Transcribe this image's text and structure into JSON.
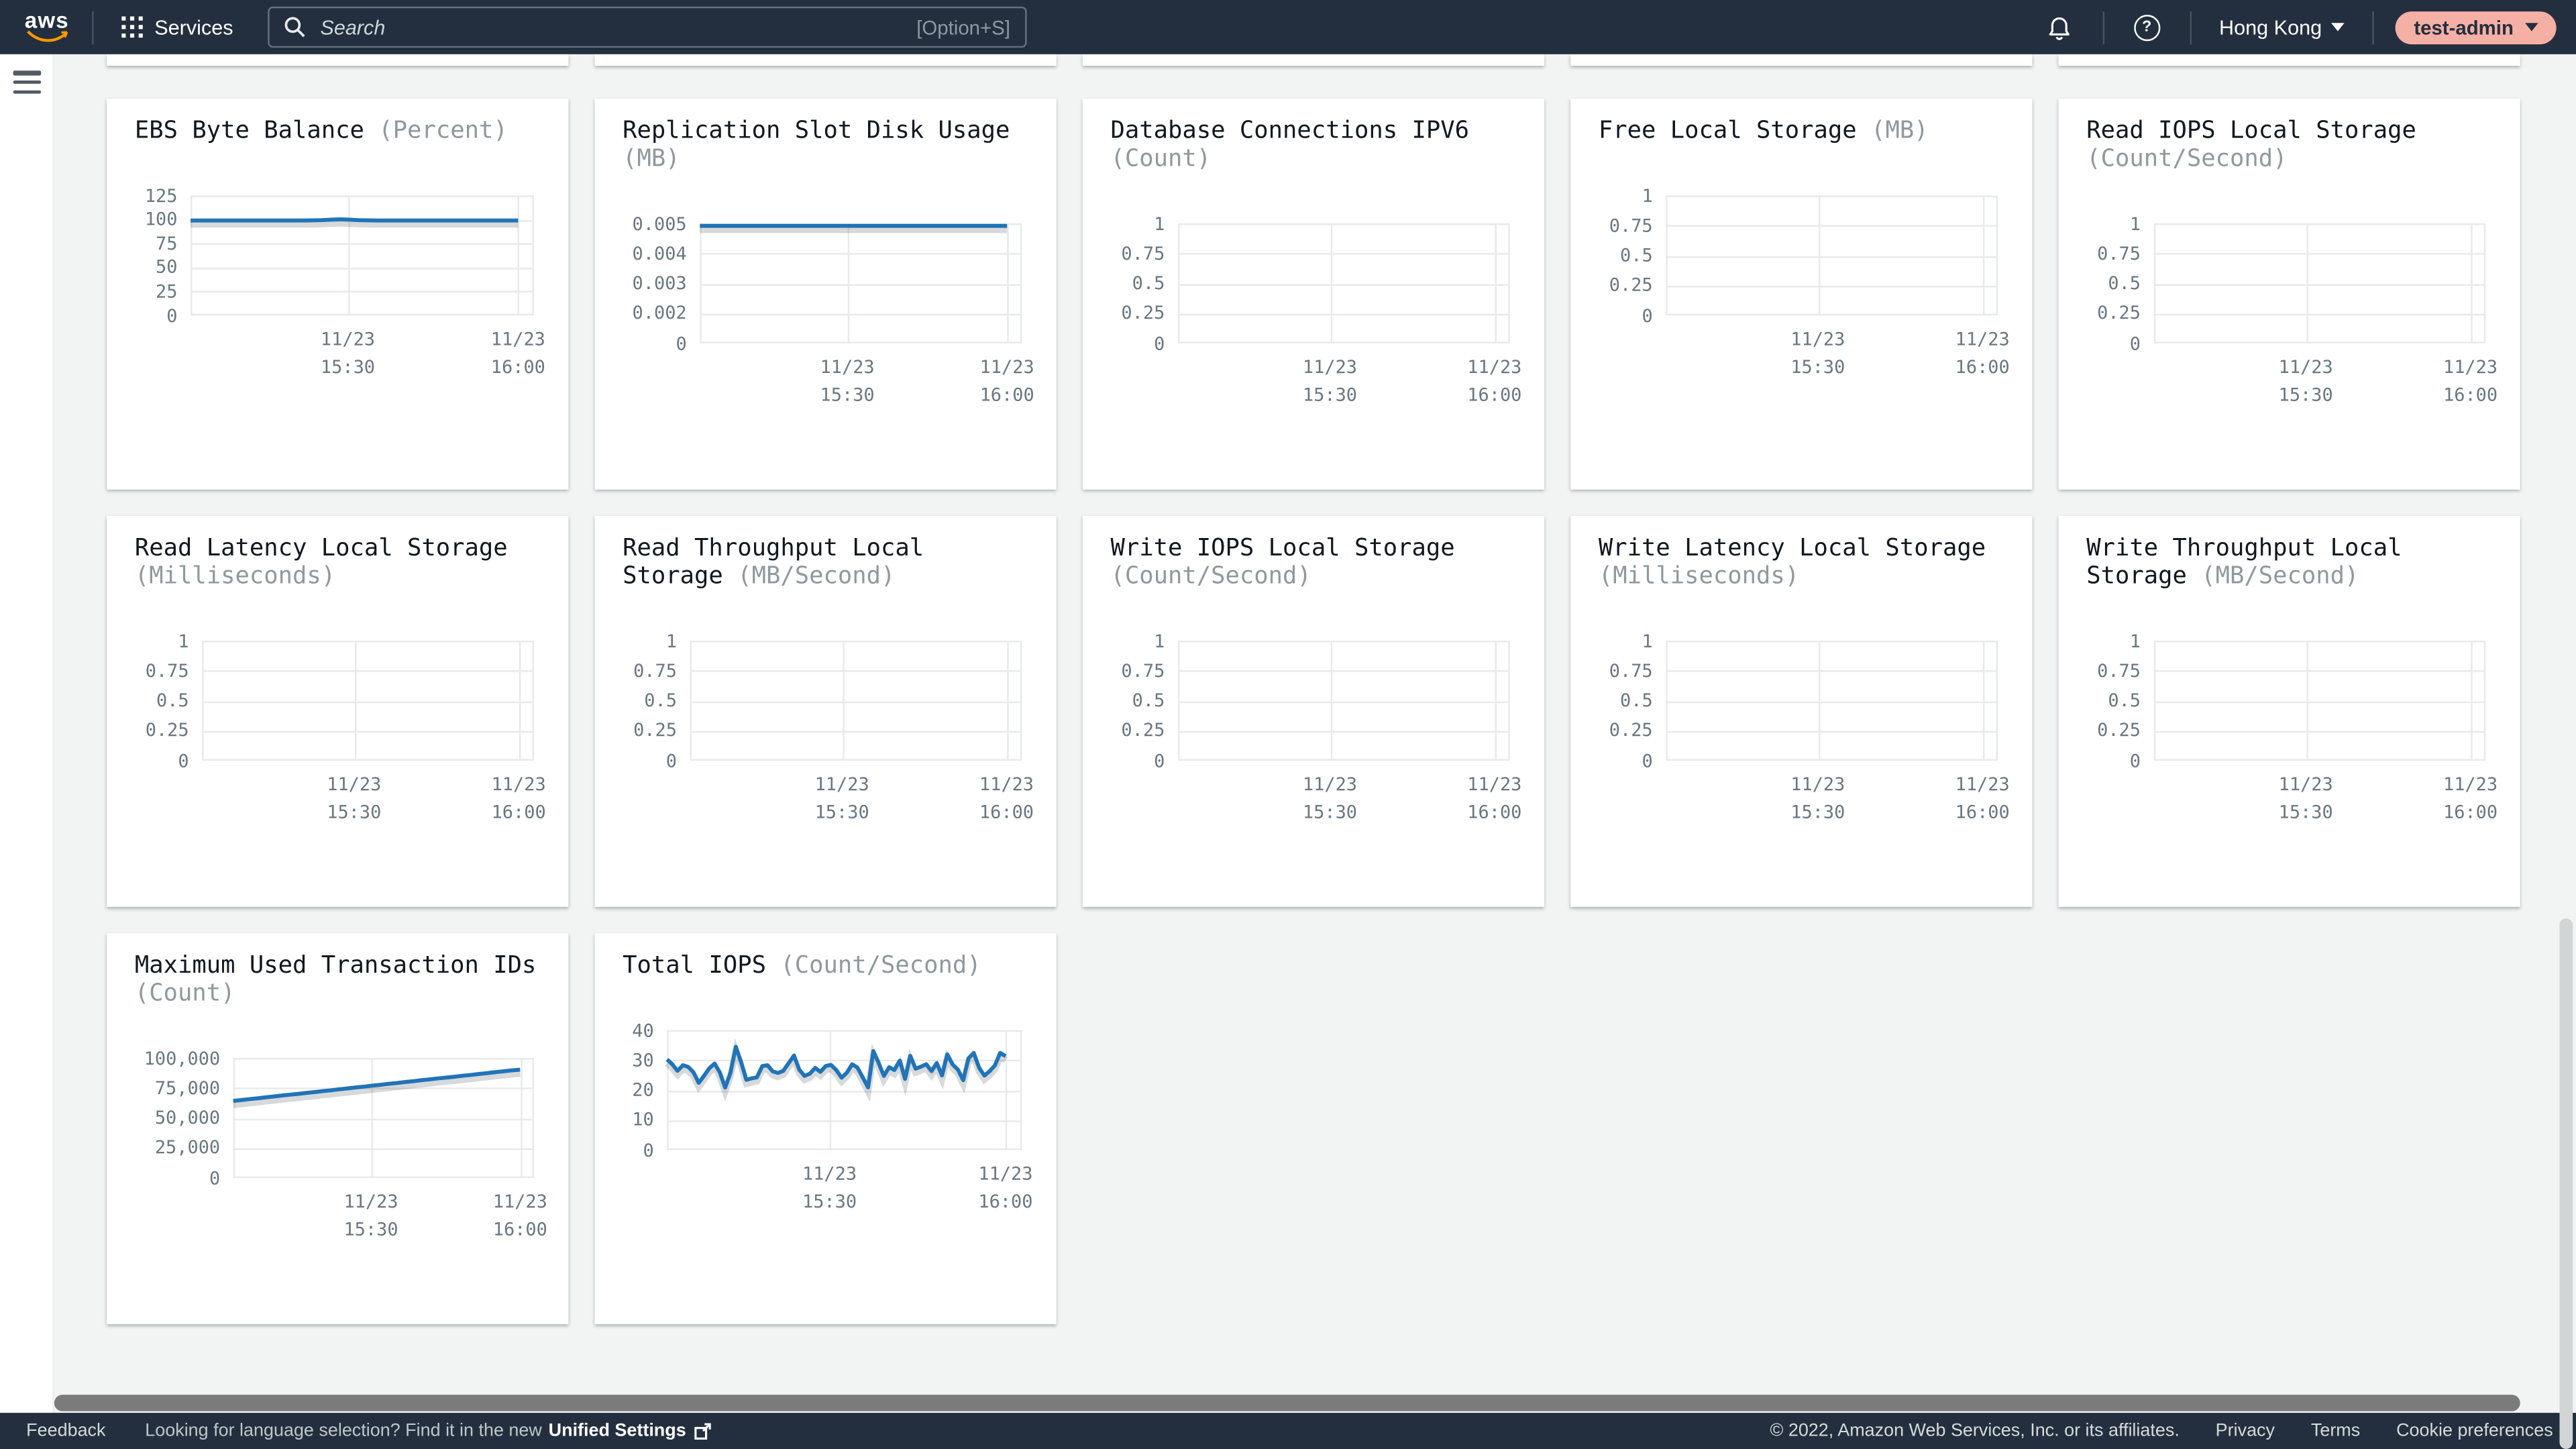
{
  "header": {
    "logo_text": "aws",
    "services_label": "Services",
    "search_placeholder": "Search",
    "search_shortcut": "[Option+S]",
    "region_label": "Hong Kong",
    "user_label": "test-admin"
  },
  "footer": {
    "feedback": "Feedback",
    "language_hint": "Looking for language selection? Find it in the new",
    "unified_settings": "Unified Settings",
    "copyright": "© 2022, Amazon Web Services, Inc. or its affiliates.",
    "privacy": "Privacy",
    "terms": "Terms",
    "cookie_preferences": "Cookie preferences"
  },
  "colors": {
    "header_bg": "#232f3e",
    "page_bg": "#f2f3f3",
    "card_bg": "#ffffff",
    "line_blue": "#2074b8",
    "grid_line": "#e7eaea",
    "aws_orange": "#ff9900",
    "user_pill_bg": "#f5b0a6",
    "title_text": "#101820",
    "unit_text": "#8e999e",
    "axis_text": "#697781"
  },
  "chart_data": [
    {
      "type": "line",
      "title": "EBS Byte Balance",
      "unit": "(Percent)",
      "ylim": [
        0,
        125
      ],
      "yticks": [
        "125",
        "100",
        "75",
        "50",
        "25",
        "0"
      ],
      "xticks": [
        [
          "11/23",
          "15:30"
        ],
        [
          "11/23",
          "16:00"
        ]
      ],
      "values": [
        99,
        99,
        99,
        99,
        99,
        99,
        99,
        99,
        99,
        99,
        99,
        99,
        99,
        99.1,
        99.4,
        99.9,
        100.2,
        99.8,
        99.4,
        99.1,
        99,
        99,
        99,
        99,
        99,
        99,
        99,
        99,
        99,
        99,
        99,
        99,
        99,
        99,
        99,
        99
      ]
    },
    {
      "type": "line",
      "title": "Replication Slot Disk Usage",
      "unit": "(MB)",
      "ylim": [
        0,
        0.005
      ],
      "yticks": [
        "0.005",
        "0.004",
        "0.003",
        "0.002",
        "0"
      ],
      "xticks": [
        [
          "11/23",
          "15:30"
        ],
        [
          "11/23",
          "16:00"
        ]
      ],
      "values": [
        0.0049,
        0.0049,
        0.0049,
        0.0049,
        0.0049,
        0.0049,
        0.0049,
        0.0049,
        0.0049,
        0.0049,
        0.0049,
        0.0049,
        0.0049,
        0.0049,
        0.0049,
        0.0049,
        0.0049,
        0.0049,
        0.0049,
        0.0049,
        0.0049,
        0.0049,
        0.0049,
        0.0049,
        0.0049,
        0.0049,
        0.0049,
        0.0049,
        0.0049,
        0.0049,
        0.0049,
        0.0049,
        0.0049,
        0.0049,
        0.0049,
        0.0049
      ]
    },
    {
      "type": "line",
      "title": "Database Connections IPV6",
      "unit": "(Count)",
      "ylim": [
        0,
        1
      ],
      "yticks": [
        "1",
        "0.75",
        "0.5",
        "0.25",
        "0"
      ],
      "xticks": [
        [
          "11/23",
          "15:30"
        ],
        [
          "11/23",
          "16:00"
        ]
      ],
      "values": []
    },
    {
      "type": "line",
      "title": "Free Local Storage",
      "unit": "(MB)",
      "ylim": [
        0,
        1
      ],
      "yticks": [
        "1",
        "0.75",
        "0.5",
        "0.25",
        "0"
      ],
      "xticks": [
        [
          "11/23",
          "15:30"
        ],
        [
          "11/23",
          "16:00"
        ]
      ],
      "values": []
    },
    {
      "type": "line",
      "title": "Read IOPS Local Storage",
      "unit": "(Count/Second)",
      "ylim": [
        0,
        1
      ],
      "yticks": [
        "1",
        "0.75",
        "0.5",
        "0.25",
        "0"
      ],
      "xticks": [
        [
          "11/23",
          "15:30"
        ],
        [
          "11/23",
          "16:00"
        ]
      ],
      "values": []
    },
    {
      "type": "line",
      "title": "Read Latency Local Storage",
      "unit": "(Milliseconds)",
      "ylim": [
        0,
        1
      ],
      "yticks": [
        "1",
        "0.75",
        "0.5",
        "0.25",
        "0"
      ],
      "xticks": [
        [
          "11/23",
          "15:30"
        ],
        [
          "11/23",
          "16:00"
        ]
      ],
      "values": []
    },
    {
      "type": "line",
      "title": "Read Throughput Local Storage",
      "unit": "(MB/Second)",
      "ylim": [
        0,
        1
      ],
      "yticks": [
        "1",
        "0.75",
        "0.5",
        "0.25",
        "0"
      ],
      "xticks": [
        [
          "11/23",
          "15:30"
        ],
        [
          "11/23",
          "16:00"
        ]
      ],
      "values": []
    },
    {
      "type": "line",
      "title": "Write IOPS Local Storage",
      "unit": "(Count/Second)",
      "ylim": [
        0,
        1
      ],
      "yticks": [
        "1",
        "0.75",
        "0.5",
        "0.25",
        "0"
      ],
      "xticks": [
        [
          "11/23",
          "15:30"
        ],
        [
          "11/23",
          "16:00"
        ]
      ],
      "values": []
    },
    {
      "type": "line",
      "title": "Write Latency Local Storage",
      "unit": "(Milliseconds)",
      "ylim": [
        0,
        1
      ],
      "yticks": [
        "1",
        "0.75",
        "0.5",
        "0.25",
        "0"
      ],
      "xticks": [
        [
          "11/23",
          "15:30"
        ],
        [
          "11/23",
          "16:00"
        ]
      ],
      "values": []
    },
    {
      "type": "line",
      "title": "Write Throughput Local Storage",
      "unit": "(MB/Second)",
      "ylim": [
        0,
        1
      ],
      "yticks": [
        "1",
        "0.75",
        "0.5",
        "0.25",
        "0"
      ],
      "xticks": [
        [
          "11/23",
          "15:30"
        ],
        [
          "11/23",
          "16:00"
        ]
      ],
      "values": []
    },
    {
      "type": "line",
      "title": "Maximum Used Transaction IDs",
      "unit": "(Count)",
      "ylim": [
        0,
        100000
      ],
      "yticks": [
        "100,000",
        "75,000",
        "50,000",
        "25,000",
        "0"
      ],
      "xticks": [
        [
          "11/23",
          "15:30"
        ],
        [
          "11/23",
          "16:00"
        ]
      ],
      "values": [
        64200,
        64950,
        65700,
        66450,
        67200,
        67950,
        68700,
        69450,
        70200,
        70950,
        71700,
        72450,
        73200,
        73950,
        74700,
        75450,
        76200,
        76950,
        77700,
        78450,
        79200,
        79950,
        80700,
        81450,
        82200,
        82950,
        83700,
        84450,
        85200,
        85950,
        86700,
        87450,
        88200,
        88950,
        89700,
        90300
      ]
    },
    {
      "type": "line",
      "title": "Total IOPS",
      "unit": "(Count/Second)",
      "ylim": [
        0,
        40
      ],
      "yticks": [
        "40",
        "30",
        "20",
        "10",
        "0"
      ],
      "xticks": [
        [
          "11/23",
          "15:30"
        ],
        [
          "11/23",
          "16:00"
        ]
      ],
      "values": [
        30.2,
        28.6,
        26.4,
        28.3,
        27.7,
        25.9,
        22.4,
        24.7,
        27.3,
        28.8,
        25.8,
        20.8,
        25.7,
        34.4,
        29.3,
        23.4,
        23.9,
        24.2,
        28.0,
        28.3,
        26.2,
        25.7,
        26.4,
        29.0,
        31.5,
        26.8,
        24.7,
        25.4,
        27.4,
        26.1,
        28.0,
        28.4,
        26.7,
        24.1,
        25.8,
        28.6,
        27.5,
        24.3,
        20.9,
        33.0,
        29.1,
        24.7,
        27.6,
        26.7,
        29.8,
        23.7,
        31.4,
        27.1,
        27.8,
        28.6,
        26.3,
        29.0,
        24.9,
        31.9,
        28.5,
        26.8,
        23.3,
        30.6,
        32.4,
        27.4,
        24.8,
        26.3,
        28.2,
        32.4,
        31.3
      ]
    }
  ]
}
